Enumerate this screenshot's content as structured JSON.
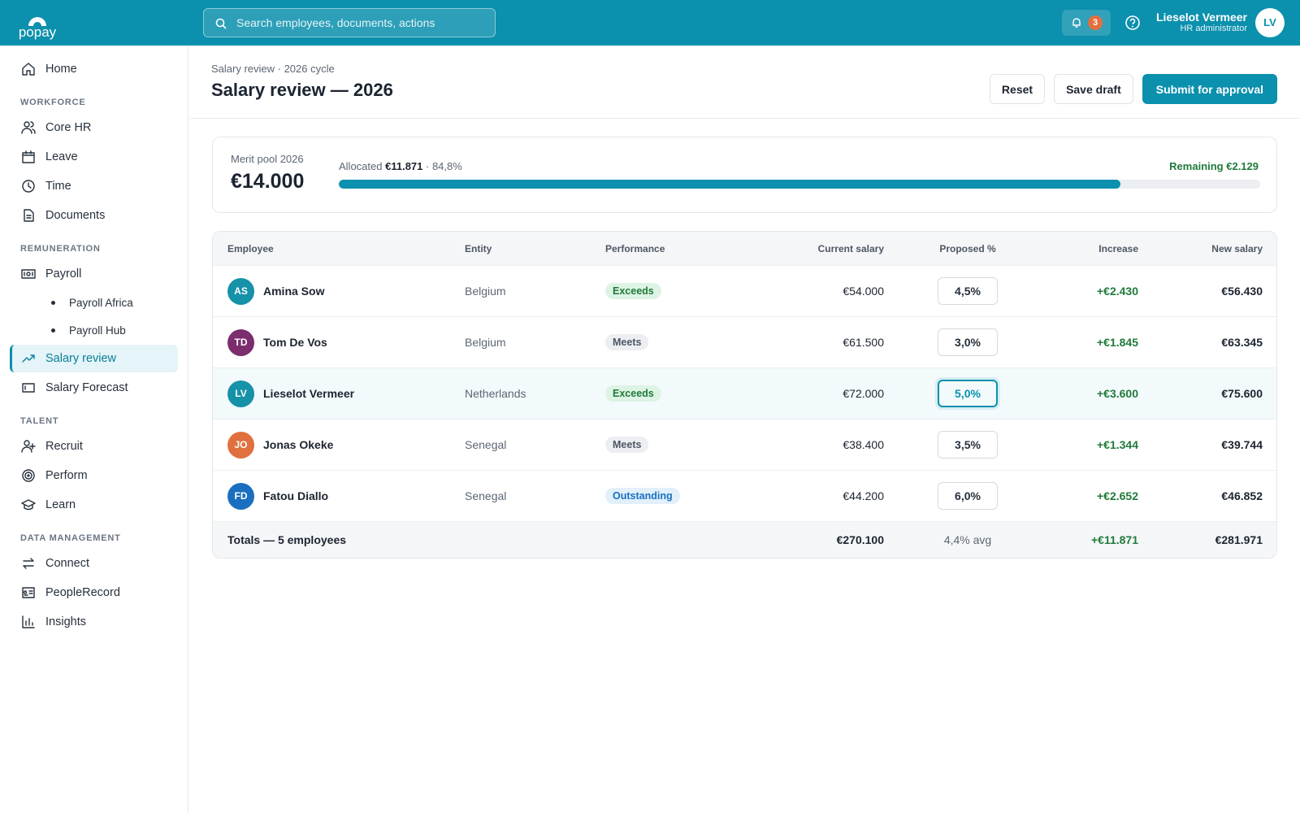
{
  "brand": "popay",
  "search_placeholder": "Search employees, documents, actions",
  "notifications": "3",
  "user": {
    "name": "Lieselot Vermeer",
    "role": "HR administrator",
    "initials": "LV"
  },
  "sidebar": {
    "home": "Home",
    "sections": [
      {
        "title": "WORKFORCE",
        "items": [
          {
            "label": "Core HR"
          },
          {
            "label": "Leave"
          },
          {
            "label": "Time"
          },
          {
            "label": "Documents"
          }
        ]
      },
      {
        "title": "REMUNERATION",
        "items": [
          {
            "label": "Payroll",
            "children": [
              "Payroll Africa",
              "Payroll Hub"
            ]
          },
          {
            "label": "Salary review",
            "active": true
          },
          {
            "label": "Salary Forecast"
          }
        ]
      },
      {
        "title": "TALENT",
        "items": [
          {
            "label": "Recruit"
          },
          {
            "label": "Perform"
          },
          {
            "label": "Learn"
          }
        ]
      },
      {
        "title": "DATA MANAGEMENT",
        "items": [
          {
            "label": "Connect"
          },
          {
            "label": "PeopleRecord"
          },
          {
            "label": "Insights"
          }
        ]
      }
    ]
  },
  "header": {
    "breadcrumb": "Salary review · 2026 cycle",
    "title": "Salary review — 2026",
    "buttons": [
      "Reset",
      "Save draft",
      "Submit for approval"
    ]
  },
  "pool": {
    "label": "Merit pool 2026",
    "amount": "€14.000",
    "allocated_label": "Allocated",
    "allocated_amount": "€11.871",
    "progress": {
      "value": 84.8,
      "label": "84,8%"
    },
    "remaining": "Remaining €2.129"
  },
  "table": {
    "columns": [
      "Employee",
      "Entity",
      "Performance",
      "Current salary",
      "Proposed %",
      "Increase",
      "New salary"
    ],
    "rows": [
      {
        "initials": "AS",
        "avatar_color": "#1591a8",
        "name": "Amina Sow",
        "entity": "Belgium",
        "performance": "Exceeds",
        "current": "€54.000",
        "proposed": "4,5%",
        "increase": "+€2.430",
        "new": "€56.430"
      },
      {
        "initials": "TD",
        "avatar_color": "#7b2d6e",
        "name": "Tom De Vos",
        "entity": "Belgium",
        "performance": "Meets",
        "current": "€61.500",
        "proposed": "3,0%",
        "increase": "+€1.845",
        "new": "€63.345"
      },
      {
        "initials": "LV",
        "avatar_color": "#1591a8",
        "name": "Lieselot Vermeer",
        "entity": "Netherlands",
        "performance": "Exceeds",
        "current": "€72.000",
        "proposed": "5,0%",
        "increase": "+€3.600",
        "new": "€75.600",
        "focused": true
      },
      {
        "initials": "JO",
        "avatar_color": "#e0703e",
        "name": "Jonas Okeke",
        "entity": "Senegal",
        "performance": "Meets",
        "current": "€38.400",
        "proposed": "3,5%",
        "increase": "+€1.344",
        "new": "€39.744"
      },
      {
        "initials": "FD",
        "avatar_color": "#1a6fc0",
        "name": "Fatou Diallo",
        "entity": "Senegal",
        "performance": "Outstanding",
        "current": "€44.200",
        "proposed": "6,0%",
        "increase": "+€2.652",
        "new": "€46.852"
      }
    ],
    "totals": {
      "label": "Totals — 5 employees",
      "current": "€270.100",
      "proposed": "4,4% avg",
      "increase": "+€11.871",
      "new": "€281.971"
    }
  }
}
